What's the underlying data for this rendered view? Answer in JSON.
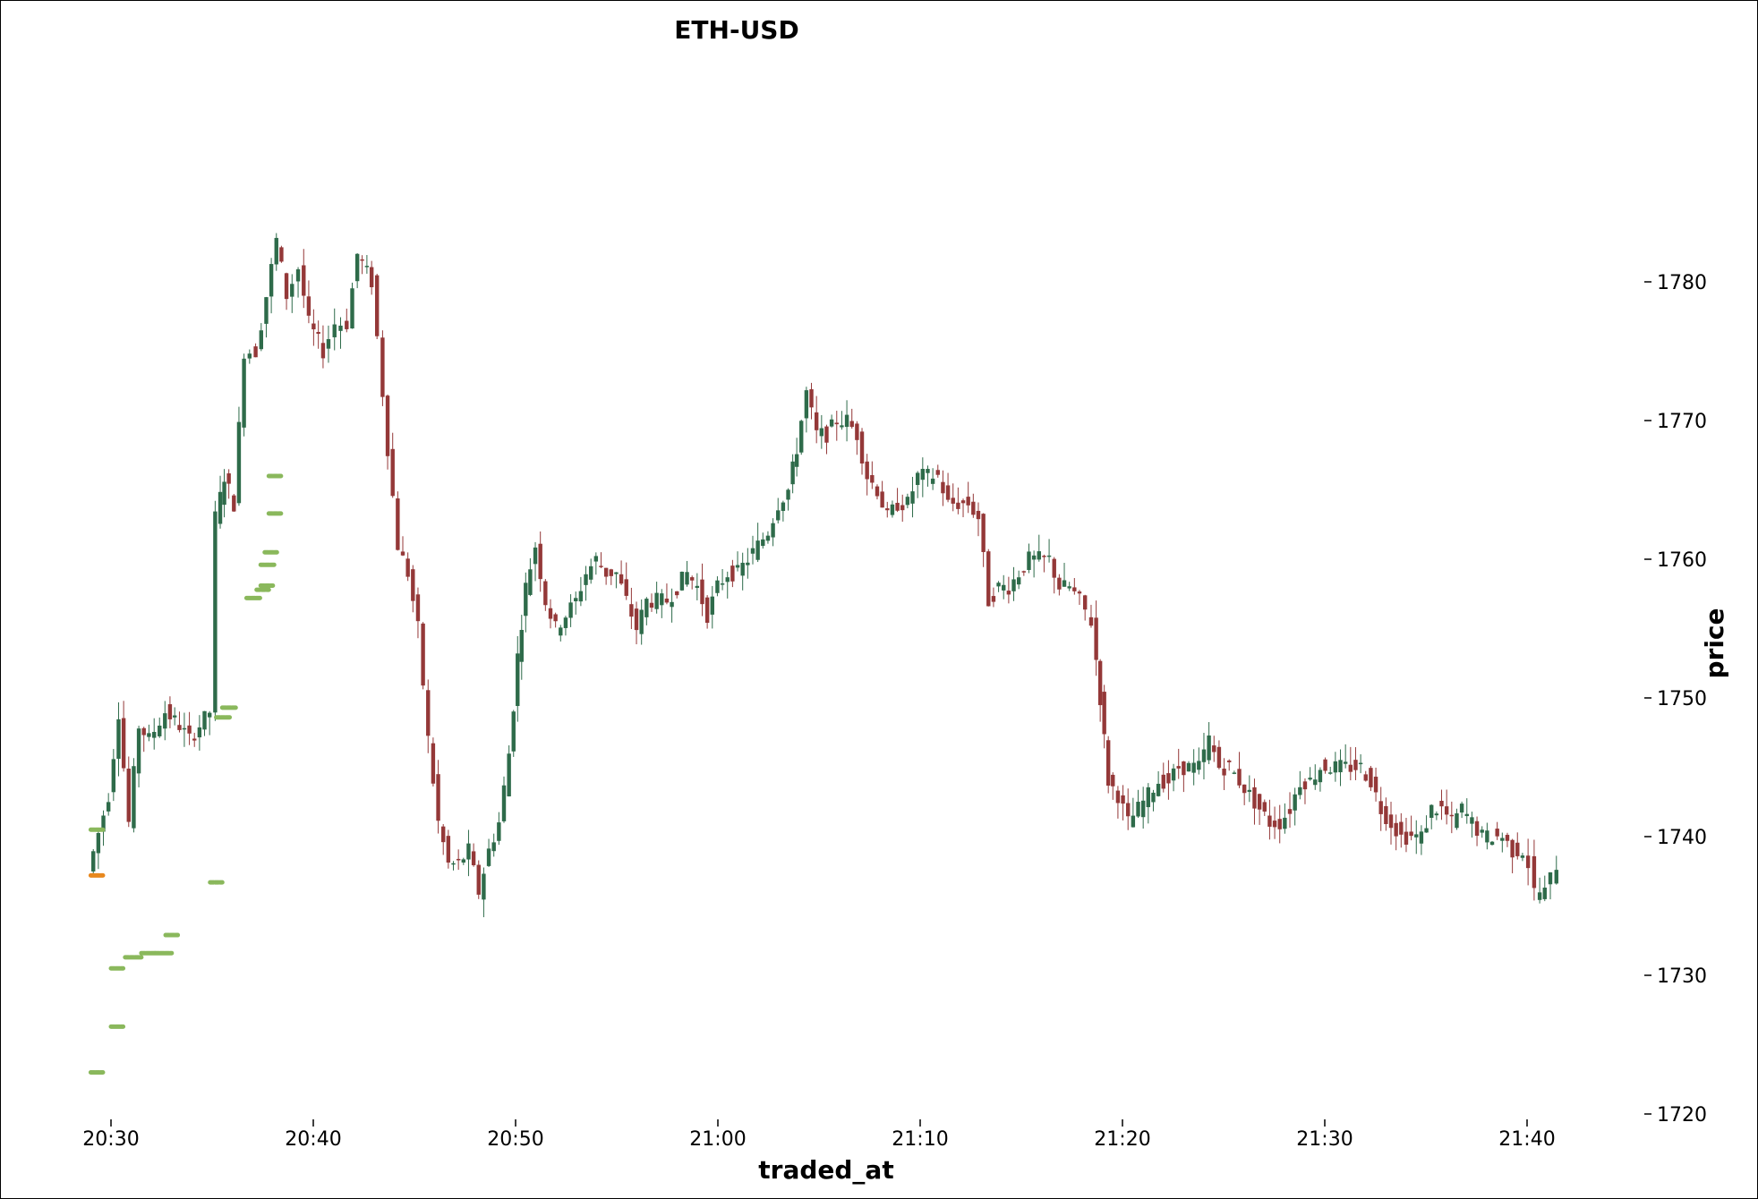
{
  "chart_data": {
    "type": "candlestick",
    "title": "ETH-USD",
    "xlabel": "traded_at",
    "ylabel": "price",
    "y_axis_side": "right",
    "ylim": [
      1719,
      1801
    ],
    "xlim": [
      "20:29",
      "21:47"
    ],
    "grid": false,
    "legend": "none",
    "x_ticks": [
      "20:30",
      "20:40",
      "20:50",
      "21:00",
      "21:10",
      "21:20",
      "21:30",
      "21:40"
    ],
    "y_ticks": [
      1720,
      1730,
      1740,
      1750,
      1760,
      1770,
      1780
    ],
    "colors": {
      "up": "#2e6b4a",
      "down": "#943838",
      "marker_green": "#8ab85c",
      "marker_orange": "#e8881e"
    },
    "price_path": [
      [
        "20:29",
        1737.5
      ],
      [
        "20:30",
        1743
      ],
      [
        "20:30.5",
        1749
      ],
      [
        "20:31",
        1741
      ],
      [
        "20:31.5",
        1748
      ],
      [
        "20:32",
        1747
      ],
      [
        "20:32.8",
        1749
      ],
      [
        "20:33.5",
        1748
      ],
      [
        "20:34",
        1747
      ],
      [
        "20:35",
        1749
      ],
      [
        "20:35.3",
        1763
      ],
      [
        "20:35.7",
        1766
      ],
      [
        "20:36.2",
        1764
      ],
      [
        "20:36.7",
        1775
      ],
      [
        "20:37.3",
        1775
      ],
      [
        "20:37.8",
        1779
      ],
      [
        "20:38.3",
        1783
      ],
      [
        "20:38.8",
        1779
      ],
      [
        "20:39.4",
        1781
      ],
      [
        "20:39.9",
        1777
      ],
      [
        "20:40.6",
        1775
      ],
      [
        "20:41.2",
        1777
      ],
      [
        "20:41.8",
        1777
      ],
      [
        "20:42.3",
        1782
      ],
      [
        "20:43",
        1780
      ],
      [
        "20:43.3",
        1776
      ],
      [
        "20:43.8",
        1768
      ],
      [
        "20:44.3",
        1761
      ],
      [
        "20:44.8",
        1759
      ],
      [
        "20:45.3",
        1755
      ],
      [
        "20:45.8",
        1747
      ],
      [
        "20:46.3",
        1741
      ],
      [
        "20:46.8",
        1738
      ],
      [
        "20:47.3",
        1738
      ],
      [
        "20:47.8",
        1739
      ],
      [
        "20:48.3",
        1736
      ],
      [
        "20:48.8",
        1739
      ],
      [
        "20:49.3",
        1741
      ],
      [
        "20:49.8",
        1746
      ],
      [
        "20:50.2",
        1753
      ],
      [
        "20:50.6",
        1758
      ],
      [
        "20:51.1",
        1761
      ],
      [
        "20:51.6",
        1757
      ],
      [
        "20:52.1",
        1755
      ],
      [
        "20:52.6",
        1756
      ],
      [
        "20:53.1",
        1757
      ],
      [
        "20:53.6",
        1759
      ],
      [
        "20:54.1",
        1760
      ],
      [
        "20:54.6",
        1759
      ],
      [
        "20:55.1",
        1759
      ],
      [
        "20:55.6",
        1757
      ],
      [
        "20:56.1",
        1755
      ],
      [
        "20:56.6",
        1757
      ],
      [
        "20:57.1",
        1757
      ],
      [
        "20:57.6",
        1757
      ],
      [
        "20:58.1",
        1758
      ],
      [
        "20:58.6",
        1759
      ],
      [
        "20:59.1",
        1758
      ],
      [
        "20:59.6",
        1756
      ],
      [
        "21:00.1",
        1758
      ],
      [
        "21:00.6",
        1759
      ],
      [
        "21:01.1",
        1759
      ],
      [
        "21:01.6",
        1760
      ],
      [
        "21:02.1",
        1761
      ],
      [
        "21:02.6",
        1762
      ],
      [
        "21:03.1",
        1764
      ],
      [
        "21:03.6",
        1765
      ],
      [
        "21:04",
        1768
      ],
      [
        "21:04.5",
        1772
      ],
      [
        "21:05",
        1769
      ],
      [
        "21:05.5",
        1769
      ],
      [
        "21:06",
        1770
      ],
      [
        "21:06.5",
        1770
      ],
      [
        "21:07",
        1769
      ],
      [
        "21:07.5",
        1766
      ],
      [
        "21:08",
        1765
      ],
      [
        "21:08.5",
        1763
      ],
      [
        "21:09",
        1764
      ],
      [
        "21:09.5",
        1764
      ],
      [
        "21:10",
        1766
      ],
      [
        "21:10.5",
        1766
      ],
      [
        "21:11",
        1766
      ],
      [
        "21:11.5",
        1764
      ],
      [
        "21:12",
        1764
      ],
      [
        "21:12.5",
        1764
      ],
      [
        "21:13",
        1763
      ],
      [
        "21:13.5",
        1757
      ],
      [
        "21:14",
        1758
      ],
      [
        "21:14.5",
        1758
      ],
      [
        "21:15",
        1759
      ],
      [
        "21:15.5",
        1760
      ],
      [
        "21:16",
        1760
      ],
      [
        "21:16.5",
        1760
      ],
      [
        "21:17",
        1758
      ],
      [
        "21:17.5",
        1758
      ],
      [
        "21:18",
        1757
      ],
      [
        "21:18.6",
        1755.5
      ],
      [
        "21:19",
        1750
      ],
      [
        "21:19.4",
        1744
      ],
      [
        "21:19.9",
        1743
      ],
      [
        "21:20.4",
        1741
      ],
      [
        "21:20.9",
        1742
      ],
      [
        "21:21.4",
        1743
      ],
      [
        "21:21.9",
        1744
      ],
      [
        "21:22.4",
        1744
      ],
      [
        "21:22.9",
        1745
      ],
      [
        "21:23.4",
        1745
      ],
      [
        "21:23.9",
        1745
      ],
      [
        "21:24.4",
        1747
      ],
      [
        "21:24.9",
        1745
      ],
      [
        "21:25.4",
        1745
      ],
      [
        "21:25.9",
        1744
      ],
      [
        "21:26.4",
        1743
      ],
      [
        "21:26.9",
        1742
      ],
      [
        "21:27.4",
        1741
      ],
      [
        "21:27.9",
        1741
      ],
      [
        "21:28.4",
        1742
      ],
      [
        "21:28.9",
        1744
      ],
      [
        "21:29.4",
        1744
      ],
      [
        "21:29.9",
        1745
      ],
      [
        "21:30.4",
        1745
      ],
      [
        "21:30.9",
        1745
      ],
      [
        "21:31.4",
        1745
      ],
      [
        "21:31.9",
        1745
      ],
      [
        "21:32.4",
        1744
      ],
      [
        "21:32.9",
        1742
      ],
      [
        "21:33.4",
        1741
      ],
      [
        "21:33.9",
        1740
      ],
      [
        "21:34.4",
        1740
      ],
      [
        "21:34.9",
        1740
      ],
      [
        "21:35.4",
        1742
      ],
      [
        "21:35.9",
        1742
      ],
      [
        "21:36.4",
        1741
      ],
      [
        "21:36.9",
        1742
      ],
      [
        "21:37.4",
        1741
      ],
      [
        "21:37.9",
        1740
      ],
      [
        "21:38.4",
        1740
      ],
      [
        "21:38.9",
        1740
      ],
      [
        "21:39.4",
        1739
      ],
      [
        "21:39.9",
        1739
      ],
      [
        "21:40.2",
        1738
      ],
      [
        "21:40.5",
        1736
      ],
      [
        "21:41",
        1736
      ],
      [
        "21:41.6",
        1738
      ]
    ],
    "markers": [
      {
        "x": [
          "20:29",
          "20:29.6"
        ],
        "y": 1740.5,
        "color": "green"
      },
      {
        "x": [
          "20:29",
          "20:29.6"
        ],
        "y": 1737.2,
        "color": "orange"
      },
      {
        "x": [
          "20:29",
          "20:29.6"
        ],
        "y": 1723,
        "color": "green"
      },
      {
        "x": [
          "20:30",
          "20:30.6"
        ],
        "y": 1730.5,
        "color": "green"
      },
      {
        "x": [
          "20:30",
          "20:30.6"
        ],
        "y": 1726.3,
        "color": "green"
      },
      {
        "x": [
          "20:30.7",
          "20:31.5"
        ],
        "y": 1731.3,
        "color": "green"
      },
      {
        "x": [
          "20:31.5",
          "20:32.2"
        ],
        "y": 1731.6,
        "color": "green"
      },
      {
        "x": [
          "20:32.2",
          "20:33"
        ],
        "y": 1731.6,
        "color": "green"
      },
      {
        "x": [
          "20:32.7",
          "20:33.3"
        ],
        "y": 1732.9,
        "color": "green"
      },
      {
        "x": [
          "20:34.9",
          "20:35.5"
        ],
        "y": 1736.7,
        "color": "green"
      },
      {
        "x": [
          "20:35.2",
          "20:35.9"
        ],
        "y": 1748.6,
        "color": "green"
      },
      {
        "x": [
          "20:35.5",
          "20:36.2"
        ],
        "y": 1749.3,
        "color": "green"
      },
      {
        "x": [
          "20:36.7",
          "20:37.4"
        ],
        "y": 1757.2,
        "color": "green"
      },
      {
        "x": [
          "20:37.2",
          "20:37.8"
        ],
        "y": 1757.8,
        "color": "green"
      },
      {
        "x": [
          "20:37.4",
          "20:38"
        ],
        "y": 1758.1,
        "color": "green"
      },
      {
        "x": [
          "20:37.4",
          "20:38.1"
        ],
        "y": 1759.6,
        "color": "green"
      },
      {
        "x": [
          "20:37.6",
          "20:38.2"
        ],
        "y": 1760.5,
        "color": "green"
      },
      {
        "x": [
          "20:37.8",
          "20:38.4"
        ],
        "y": 1763.3,
        "color": "green"
      },
      {
        "x": [
          "20:37.8",
          "20:38.4"
        ],
        "y": 1766,
        "color": "green"
      }
    ]
  }
}
